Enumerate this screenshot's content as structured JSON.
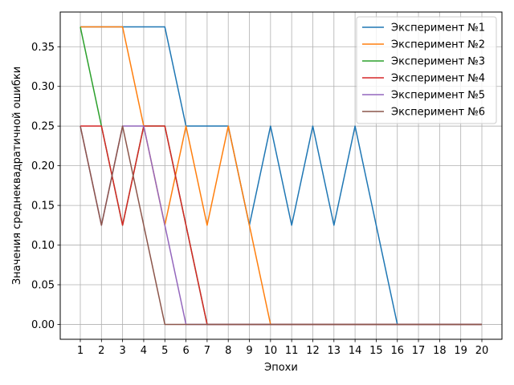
{
  "chart_data": {
    "type": "line",
    "title": "",
    "xlabel": "Эпохи",
    "ylabel": "Значения среднеквадратичной ошибки",
    "xlim": [
      0.05,
      20.95
    ],
    "ylim": [
      -0.01875,
      0.39375
    ],
    "x": [
      1,
      2,
      3,
      4,
      5,
      6,
      7,
      8,
      9,
      10,
      11,
      12,
      13,
      14,
      15,
      16,
      17,
      18,
      19,
      20
    ],
    "xticks": [
      "1",
      "2",
      "3",
      "4",
      "5",
      "6",
      "7",
      "8",
      "9",
      "10",
      "11",
      "12",
      "13",
      "14",
      "15",
      "16",
      "17",
      "18",
      "19",
      "20"
    ],
    "yticks": [
      0.0,
      0.05,
      0.1,
      0.15,
      0.2,
      0.25,
      0.3,
      0.35
    ],
    "ytick_labels": [
      "0.00",
      "0.05",
      "0.10",
      "0.15",
      "0.20",
      "0.25",
      "0.30",
      "0.35"
    ],
    "grid": true,
    "legend_position": "top-right",
    "series": [
      {
        "name": "Эксперимент №1",
        "color": "#1f77b4",
        "values": [
          0.375,
          0.375,
          0.375,
          0.375,
          0.375,
          0.25,
          0.25,
          0.25,
          0.125,
          0.25,
          0.125,
          0.25,
          0.125,
          0.25,
          0.125,
          0.0,
          0.0,
          0.0,
          0.0,
          0.0
        ]
      },
      {
        "name": "Эксперимент №2",
        "color": "#ff7f0e",
        "values": [
          0.375,
          0.375,
          0.375,
          0.25,
          0.125,
          0.25,
          0.125,
          0.25,
          0.125,
          0.0,
          0.0,
          0.0,
          0.0,
          0.0,
          0.0,
          0.0,
          0.0,
          0.0,
          0.0,
          0.0
        ]
      },
      {
        "name": "Эксперимент №3",
        "color": "#2ca02c",
        "values": [
          0.375,
          0.25,
          0.125,
          0.25,
          0.25,
          0.125,
          0.0,
          0.0,
          0.0,
          0.0,
          0.0,
          0.0,
          0.0,
          0.0,
          0.0,
          0.0,
          0.0,
          0.0,
          0.0,
          0.0
        ]
      },
      {
        "name": "Эксперимент №4",
        "color": "#d62728",
        "values": [
          0.25,
          0.25,
          0.125,
          0.25,
          0.25,
          0.125,
          0.0,
          0.0,
          0.0,
          0.0,
          0.0,
          0.0,
          0.0,
          0.0,
          0.0,
          0.0,
          0.0,
          0.0,
          0.0,
          0.0
        ]
      },
      {
        "name": "Эксперимент №5",
        "color": "#9467bd",
        "values": [
          0.25,
          0.125,
          0.25,
          0.25,
          0.125,
          0.0,
          0.0,
          0.0,
          0.0,
          0.0,
          0.0,
          0.0,
          0.0,
          0.0,
          0.0,
          0.0,
          0.0,
          0.0,
          0.0,
          0.0
        ]
      },
      {
        "name": "Эксперимент №6",
        "color": "#8c564b",
        "values": [
          0.25,
          0.125,
          0.25,
          0.125,
          0.0,
          0.0,
          0.0,
          0.0,
          0.0,
          0.0,
          0.0,
          0.0,
          0.0,
          0.0,
          0.0,
          0.0,
          0.0,
          0.0,
          0.0,
          0.0
        ]
      }
    ]
  }
}
